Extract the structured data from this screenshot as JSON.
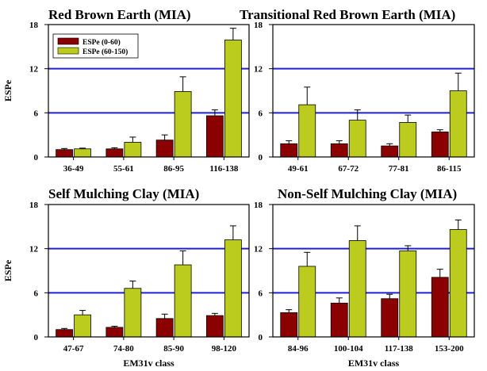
{
  "colors": {
    "series_1": "#8b0000",
    "series_2": "#bccc1f",
    "reference_line": "#1f1fd6"
  },
  "chart_data": [
    {
      "type": "bar",
      "title": "Red Brown Earth (MIA)",
      "xlabel": "",
      "ylabel": "ESPe",
      "ylim": [
        0,
        18
      ],
      "yticks": [
        0,
        6,
        12,
        18
      ],
      "reference_lines": [
        6,
        12
      ],
      "categories": [
        "36-49",
        "55-61",
        "86-95",
        "116-138"
      ],
      "legend": {
        "placement": "top-left"
      },
      "series": [
        {
          "name": "ESPe (0-60)",
          "values": [
            1.0,
            1.1,
            2.3,
            5.6
          ],
          "errors": [
            0.15,
            0.15,
            0.7,
            0.8
          ]
        },
        {
          "name": "ESPe (60-150)",
          "values": [
            1.1,
            2.0,
            8.9,
            15.9
          ],
          "errors": [
            0.1,
            0.7,
            2.0,
            1.6
          ]
        }
      ]
    },
    {
      "type": "bar",
      "title": "Transitional Red Brown Earth (MIA)",
      "xlabel": "",
      "ylabel": "",
      "ylim": [
        0,
        18
      ],
      "yticks": [
        0,
        6,
        12,
        18
      ],
      "reference_lines": [
        6,
        12
      ],
      "categories": [
        "49-61",
        "67-72",
        "77-81",
        "86-115"
      ],
      "series": [
        {
          "name": "ESPe (0-60)",
          "values": [
            1.8,
            1.8,
            1.5,
            3.4
          ],
          "errors": [
            0.4,
            0.4,
            0.3,
            0.3
          ]
        },
        {
          "name": "ESPe (60-150)",
          "values": [
            7.1,
            5.0,
            4.7,
            9.0
          ],
          "errors": [
            2.4,
            1.4,
            1.0,
            2.4
          ]
        }
      ]
    },
    {
      "type": "bar",
      "title": "Self Mulching Clay (MIA)",
      "xlabel": "EM31v class",
      "ylabel": "ESPe",
      "ylim": [
        0,
        18
      ],
      "yticks": [
        0,
        6,
        12,
        18
      ],
      "reference_lines": [
        6,
        12
      ],
      "categories": [
        "47-67",
        "74-80",
        "85-90",
        "98-120"
      ],
      "series": [
        {
          "name": "ESPe (0-60)",
          "values": [
            1.0,
            1.3,
            2.5,
            2.9
          ],
          "errors": [
            0.15,
            0.15,
            0.6,
            0.3
          ]
        },
        {
          "name": "ESPe (60-150)",
          "values": [
            3.0,
            6.6,
            9.8,
            13.2
          ],
          "errors": [
            0.6,
            1.0,
            1.9,
            1.9
          ]
        }
      ]
    },
    {
      "type": "bar",
      "title": "Non-Self Mulching Clay (MIA)",
      "xlabel": "EM31v class",
      "ylabel": "",
      "ylim": [
        0,
        18
      ],
      "yticks": [
        0,
        6,
        12,
        18
      ],
      "reference_lines": [
        6,
        12
      ],
      "categories": [
        "84-96",
        "100-104",
        "117-138",
        "153-200"
      ],
      "series": [
        {
          "name": "ESPe (0-60)",
          "values": [
            3.3,
            4.6,
            5.2,
            8.1
          ],
          "errors": [
            0.4,
            0.7,
            0.6,
            1.1
          ]
        },
        {
          "name": "ESPe (60-150)",
          "values": [
            9.6,
            13.1,
            11.7,
            14.6
          ],
          "errors": [
            1.9,
            2.0,
            0.7,
            1.3
          ]
        }
      ]
    }
  ]
}
